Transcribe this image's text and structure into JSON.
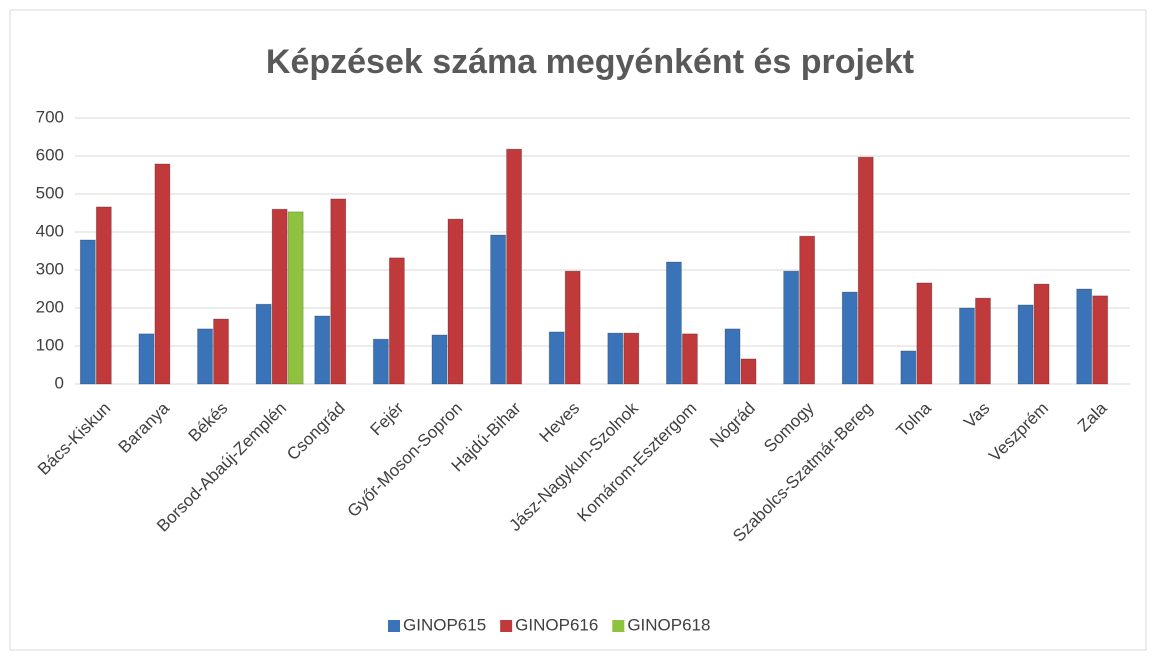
{
  "chart_data": {
    "type": "bar",
    "title": "Képzések száma megyénként és projekt",
    "categories": [
      "Bács-Kiskun",
      "Baranya",
      "Békés",
      "Borsod-Abaúj-Zemplén",
      "Csongrád",
      "Fejér",
      "Győr-Moson-Sopron",
      "Hajdú-Bihar",
      "Heves",
      "Jász-Nagykun-Szolnok",
      "Komárom-Esztergom",
      "Nógrád",
      "Somogy",
      "Szabolcs-Szatmár-Bereg",
      "Tolna",
      "Vas",
      "Veszprém",
      "Zala"
    ],
    "series": [
      {
        "name": "GINOP615",
        "color": "#3a73b8",
        "values": [
          379,
          132,
          145,
          210,
          179,
          118,
          129,
          392,
          137,
          134,
          321,
          145,
          297,
          242,
          87,
          200,
          208,
          250
        ]
      },
      {
        "name": "GINOP616",
        "color": "#c0393b",
        "values": [
          466,
          579,
          171,
          460,
          487,
          332,
          434,
          618,
          297,
          134,
          132,
          66,
          389,
          597,
          266,
          226,
          263,
          232
        ]
      },
      {
        "name": "GINOP618",
        "color": "#8fc23f",
        "values": [
          null,
          null,
          null,
          453,
          null,
          null,
          null,
          null,
          null,
          null,
          null,
          null,
          null,
          null,
          null,
          null,
          null,
          null
        ]
      }
    ],
    "ylim": [
      0,
      700
    ],
    "yticks": [
      0,
      100,
      200,
      300,
      400,
      500,
      600,
      700
    ],
    "grid": true,
    "legend": "bottom"
  }
}
